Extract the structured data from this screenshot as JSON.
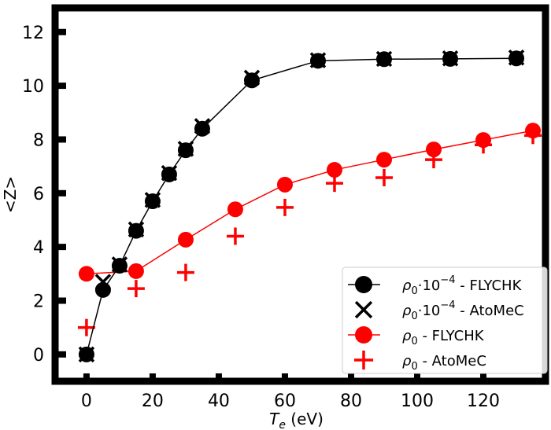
{
  "chart_data": {
    "type": "line",
    "title": "",
    "xlabel": "T_e (eV)",
    "xlabel_main": "T",
    "xlabel_sub": "e",
    "xlabel_unit": " (eV)",
    "ylabel": "<Z>",
    "xlim": [
      -9.5,
      138.8
    ],
    "ylim": [
      -1.0,
      12.9
    ],
    "xticks": [
      0,
      20,
      40,
      60,
      80,
      100,
      120
    ],
    "xtick_labels": [
      "0",
      "20",
      "40",
      "60",
      "80",
      "100",
      "120"
    ],
    "yticks": [
      0,
      2,
      4,
      6,
      8,
      10,
      12
    ],
    "ytick_labels": [
      "0",
      "2",
      "4",
      "6",
      "8",
      "10",
      "12"
    ],
    "grid": false,
    "legend_position": "lower-right",
    "series": [
      {
        "name": "ρ0·10^-4 - FLYCHK",
        "legend_prefix": "ρ",
        "legend_sub": "0",
        "legend_mid": "·10",
        "legend_sup": "−4",
        "legend_suffix": " - FLYCHK",
        "color": "#000000",
        "marker": "circle",
        "line": true,
        "x": [
          0,
          5,
          10,
          15,
          20,
          25,
          30,
          35,
          50,
          70,
          90,
          110,
          130
        ],
        "y": [
          0.0,
          2.4,
          3.3,
          4.6,
          5.7,
          6.7,
          7.6,
          8.4,
          10.2,
          10.93,
          10.99,
          11.0,
          11.02
        ]
      },
      {
        "name": "ρ0·10^-4 - AtoMeC",
        "legend_prefix": "ρ",
        "legend_sub": "0",
        "legend_mid": "·10",
        "legend_sup": "−4",
        "legend_suffix": " - AtoMeC",
        "color": "#000000",
        "marker": "x",
        "line": false,
        "x": [
          0,
          5,
          10,
          15,
          20,
          25,
          30,
          35,
          50,
          70,
          90,
          110,
          130
        ],
        "y": [
          0.0,
          2.7,
          3.35,
          4.65,
          5.75,
          6.75,
          7.65,
          8.5,
          10.3,
          10.95,
          11.0,
          11.02,
          11.05
        ]
      },
      {
        "name": "ρ0 - FLYCHK",
        "legend_prefix": "ρ",
        "legend_sub": "0",
        "legend_mid": "",
        "legend_sup": "",
        "legend_suffix": " - FLYCHK",
        "color": "#ff0000",
        "marker": "circle",
        "line": true,
        "x": [
          0,
          15,
          30,
          45,
          60,
          75,
          90,
          105,
          120,
          135
        ],
        "y": [
          3.0,
          3.1,
          4.27,
          5.4,
          6.32,
          6.87,
          7.25,
          7.63,
          7.98,
          8.33
        ]
      },
      {
        "name": "ρ0 - AtoMeC",
        "legend_prefix": "ρ",
        "legend_sub": "0",
        "legend_mid": "",
        "legend_sup": "",
        "legend_suffix": " - AtoMeC",
        "color": "#ff0000",
        "marker": "plus",
        "line": false,
        "x": [
          0,
          15,
          30,
          45,
          60,
          75,
          90,
          105,
          120,
          135
        ],
        "y": [
          1.0,
          2.45,
          3.05,
          4.4,
          5.47,
          6.37,
          6.58,
          7.25,
          7.8,
          8.15
        ]
      }
    ]
  }
}
